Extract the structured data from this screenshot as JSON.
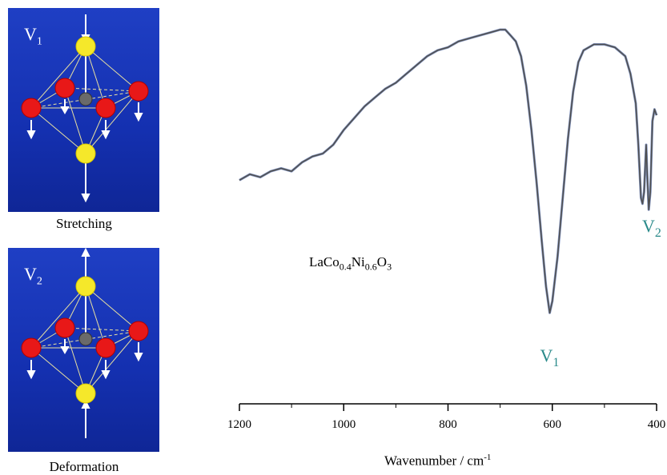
{
  "panels": [
    {
      "label_main": "V",
      "label_sub": "1",
      "caption": "Stretching"
    },
    {
      "label_main": "V",
      "label_sub": "2",
      "caption": "Deformation"
    }
  ],
  "chart_data": {
    "type": "line",
    "title": "",
    "xlabel": "Wavenumber / cm",
    "xlabel_sup": "-1",
    "ylabel": "",
    "xlim": [
      1200,
      400
    ],
    "x_reversed": true,
    "yaxis_shown": false,
    "grid": false,
    "xticks": [
      1200,
      1000,
      800,
      600,
      400
    ],
    "xtick_labels": [
      "1200",
      "1000",
      "800",
      "600",
      "400"
    ],
    "compound_parts": [
      "LaCo",
      "0.4",
      "Ni",
      "0.6",
      "O",
      "3"
    ],
    "annotations": [
      {
        "text_main": "V",
        "text_sub": "1",
        "x": 605
      },
      {
        "text_main": "V",
        "text_sub": "2",
        "x": 400
      }
    ],
    "series": [
      {
        "color": "#505050",
        "x": [
          1200,
          1180,
          1160,
          1140,
          1120,
          1100,
          1080,
          1060,
          1040,
          1020,
          1000,
          980,
          960,
          940,
          920,
          900,
          880,
          860,
          840,
          820,
          800,
          780,
          760,
          740,
          720,
          700,
          690,
          680,
          670,
          660,
          650,
          640,
          630,
          620,
          612,
          605,
          600,
          590,
          580,
          570,
          560,
          550,
          540,
          520,
          500,
          480,
          460,
          450,
          440,
          435,
          430,
          427,
          424,
          420,
          418,
          415,
          412,
          408,
          404,
          400
        ],
        "y": [
          0.46,
          0.48,
          0.47,
          0.49,
          0.5,
          0.49,
          0.52,
          0.54,
          0.55,
          0.58,
          0.63,
          0.67,
          0.71,
          0.74,
          0.77,
          0.79,
          0.82,
          0.85,
          0.88,
          0.9,
          0.91,
          0.93,
          0.94,
          0.95,
          0.96,
          0.97,
          0.97,
          0.95,
          0.93,
          0.88,
          0.78,
          0.63,
          0.45,
          0.25,
          0.1,
          0.01,
          0.05,
          0.2,
          0.4,
          0.6,
          0.76,
          0.86,
          0.9,
          0.92,
          0.92,
          0.91,
          0.88,
          0.82,
          0.72,
          0.58,
          0.4,
          0.38,
          0.42,
          0.58,
          0.48,
          0.36,
          0.42,
          0.66,
          0.7,
          0.68
        ]
      }
    ]
  }
}
